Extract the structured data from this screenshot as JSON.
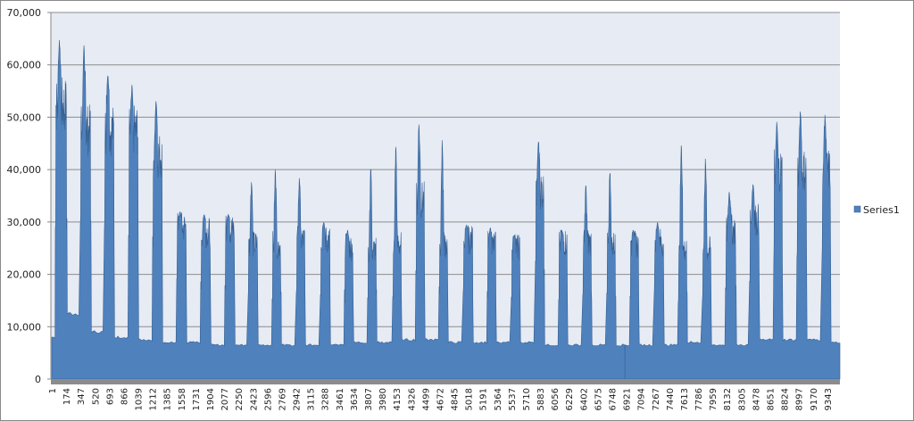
{
  "chart_data": {
    "type": "area",
    "title": "",
    "xlabel": "",
    "ylabel": "",
    "ylim": [
      0,
      70000
    ],
    "yticks": [
      "0",
      "10,000",
      "20,000",
      "30,000",
      "40,000",
      "50,000",
      "60,000",
      "70,000"
    ],
    "ytick_values": [
      0,
      10000,
      20000,
      30000,
      40000,
      50000,
      60000,
      70000
    ],
    "xlim": [
      1,
      9480
    ],
    "xticks": [
      "1",
      "174",
      "347",
      "520",
      "693",
      "866",
      "1039",
      "1212",
      "1385",
      "1558",
      "1731",
      "1904",
      "2077",
      "2250",
      "2423",
      "2596",
      "2769",
      "2942",
      "3115",
      "3288",
      "3461",
      "3634",
      "3807",
      "3980",
      "4153",
      "4326",
      "4499",
      "4672",
      "4845",
      "5018",
      "5191",
      "5364",
      "5537",
      "5710",
      "5883",
      "6056",
      "6229",
      "6402",
      "6575",
      "6748",
      "6921",
      "7094",
      "7267",
      "7440",
      "7613",
      "7786",
      "7959",
      "8132",
      "8305",
      "8478",
      "8651",
      "8824",
      "8997",
      "9170",
      "9343"
    ],
    "grid": true,
    "legend_position": "right",
    "series": [
      {
        "name": "Series1",
        "color": "#4f81bd",
        "initial_baseline": 8000,
        "bursts_note_fields": [
          "start",
          "end",
          "plateau",
          "peak",
          "baseline_after"
        ],
        "bursts": [
          [
            44,
            184,
            55000,
            65000,
            12500
          ],
          [
            345,
            474,
            50000,
            64500,
            9000
          ],
          [
            635,
            754,
            50000,
            58500,
            8000
          ],
          [
            926,
            1044,
            50000,
            56500,
            7500
          ],
          [
            1216,
            1334,
            45000,
            53500,
            7000
          ],
          [
            1506,
            1624,
            30500,
            32000,
            7000
          ],
          [
            1796,
            1915,
            29500,
            31500,
            6500
          ],
          [
            2087,
            2205,
            30000,
            31500,
            6500
          ],
          [
            2366,
            2484,
            27000,
            38000,
            6500
          ],
          [
            2656,
            2764,
            27000,
            40800,
            6500
          ],
          [
            2947,
            3054,
            28000,
            39000,
            6500
          ],
          [
            3237,
            3355,
            28000,
            30000,
            6500
          ],
          [
            3527,
            3634,
            26500,
            28500,
            7000
          ],
          [
            3806,
            3914,
            26000,
            41000,
            7000
          ],
          [
            4108,
            4215,
            27000,
            45500,
            7500
          ],
          [
            4387,
            4494,
            36000,
            49500,
            7500
          ],
          [
            4667,
            4774,
            27000,
            46500,
            7000
          ],
          [
            4957,
            5075,
            28000,
            29500,
            7000
          ],
          [
            5247,
            5354,
            27000,
            29000,
            7000
          ],
          [
            5537,
            5644,
            26500,
            27500,
            7000
          ],
          [
            5827,
            5935,
            38000,
            46000,
            6500
          ],
          [
            6107,
            6214,
            27500,
            28500,
            6500
          ],
          [
            6397,
            6505,
            27500,
            38000,
            6500
          ],
          [
            6687,
            6795,
            27000,
            40500,
            6500
          ],
          [
            6967,
            7074,
            27000,
            28500,
            6500
          ],
          [
            7257,
            7375,
            27500,
            30000,
            6500
          ],
          [
            7547,
            7655,
            26000,
            46000,
            7000
          ],
          [
            7838,
            7945,
            26000,
            43000,
            6500
          ],
          [
            8117,
            8246,
            30000,
            36000,
            6500
          ],
          [
            8407,
            8526,
            32000,
            37500,
            7500
          ],
          [
            8698,
            8805,
            42000,
            49500,
            7500
          ],
          [
            8977,
            9095,
            42000,
            51500,
            7500
          ],
          [
            9278,
            9385,
            42000,
            51000,
            7000
          ]
        ],
        "dips": [
          [
            6905,
            0
          ]
        ]
      }
    ]
  }
}
